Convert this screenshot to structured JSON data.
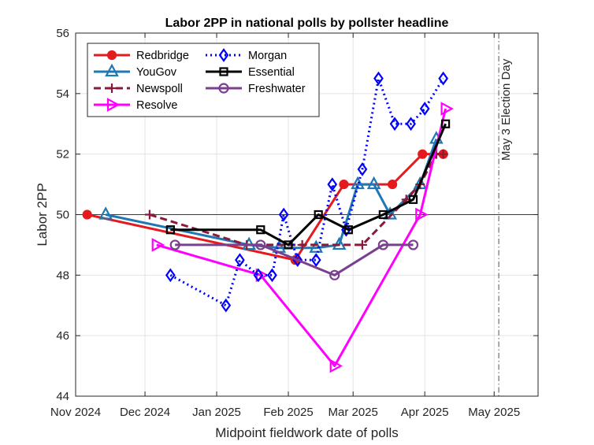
{
  "chart_data": {
    "type": "line",
    "title": "Labor 2PP in national polls by pollster headline",
    "xlabel": "Midpoint fieldwork date of polls",
    "ylabel": "Labor 2PP",
    "xlim": [
      "2024-11-01",
      "2025-05-20"
    ],
    "ylim": [
      44,
      56
    ],
    "yticks": [
      44,
      46,
      48,
      50,
      52,
      54,
      56
    ],
    "xticks": [
      {
        "date": "2024-11-01",
        "label": "Nov 2024"
      },
      {
        "date": "2024-12-01",
        "label": "Dec 2024"
      },
      {
        "date": "2025-01-01",
        "label": "Jan 2025"
      },
      {
        "date": "2025-02-01",
        "label": "Feb 2025"
      },
      {
        "date": "2025-03-01",
        "label": "Mar 2025"
      },
      {
        "date": "2025-04-01",
        "label": "Apr 2025"
      },
      {
        "date": "2025-05-01",
        "label": "May 2025"
      }
    ],
    "grid": true,
    "legend_position": "top-left",
    "reference_line_y": 50,
    "annotation": {
      "date": "2025-05-03",
      "text": "May 3 Election Day"
    },
    "series": [
      {
        "name": "Redbridge",
        "color": "#e41a1c",
        "dash": "solid",
        "marker": "circle",
        "points": [
          [
            "2024-11-06",
            50.0
          ],
          [
            "2025-02-04",
            48.5
          ],
          [
            "2025-02-25",
            51.0
          ],
          [
            "2025-03-18",
            51.0
          ],
          [
            "2025-03-31",
            52.0
          ],
          [
            "2025-04-09",
            52.0
          ]
        ]
      },
      {
        "name": "YouGov",
        "color": "#1f77b4",
        "dash": "solid",
        "marker": "triangle",
        "points": [
          [
            "2024-11-14",
            50.0
          ],
          [
            "2025-01-15",
            49.0
          ],
          [
            "2025-01-28",
            48.9
          ],
          [
            "2025-02-13",
            48.9
          ],
          [
            "2025-02-23",
            49.0
          ],
          [
            "2025-03-03",
            51.0
          ],
          [
            "2025-03-10",
            51.0
          ],
          [
            "2025-03-17",
            50.0
          ],
          [
            "2025-03-30",
            51.0
          ],
          [
            "2025-04-06",
            52.5
          ]
        ]
      },
      {
        "name": "Newspoll",
        "color": "#8b1a3a",
        "dash": "dashed",
        "marker": "plus",
        "points": [
          [
            "2024-12-03",
            50.0
          ],
          [
            "2025-01-14",
            49.0
          ],
          [
            "2025-02-07",
            49.0
          ],
          [
            "2025-03-05",
            49.0
          ],
          [
            "2025-03-24",
            50.5
          ],
          [
            "2025-03-30",
            51.0
          ],
          [
            "2025-04-06",
            52.0
          ],
          [
            "2025-04-09",
            52.0
          ]
        ]
      },
      {
        "name": "Resolve",
        "color": "#ff00ff",
        "dash": "solid",
        "marker": "triangle-right",
        "points": [
          [
            "2024-12-06",
            49.0
          ],
          [
            "2025-01-20",
            48.0
          ],
          [
            "2025-02-21",
            45.0
          ],
          [
            "2025-03-30",
            50.0
          ],
          [
            "2025-04-10",
            53.5
          ]
        ]
      },
      {
        "name": "Morgan",
        "color": "#0000ff",
        "dash": "dotted",
        "marker": "diamond",
        "points": [
          [
            "2024-12-12",
            48.0
          ],
          [
            "2025-01-05",
            47.0
          ],
          [
            "2025-01-11",
            48.5
          ],
          [
            "2025-01-19",
            48.0
          ],
          [
            "2025-01-25",
            48.0
          ],
          [
            "2025-01-30",
            50.0
          ],
          [
            "2025-02-05",
            48.5
          ],
          [
            "2025-02-13",
            48.5
          ],
          [
            "2025-02-20",
            51.0
          ],
          [
            "2025-02-26",
            49.5
          ],
          [
            "2025-03-05",
            51.5
          ],
          [
            "2025-03-12",
            54.5
          ],
          [
            "2025-03-19",
            53.0
          ],
          [
            "2025-03-26",
            53.0
          ],
          [
            "2025-04-01",
            53.5
          ],
          [
            "2025-04-09",
            54.5
          ]
        ]
      },
      {
        "name": "Essential",
        "color": "#000000",
        "dash": "solid",
        "marker": "square",
        "points": [
          [
            "2024-12-12",
            49.5
          ],
          [
            "2025-01-20",
            49.5
          ],
          [
            "2025-02-01",
            49.0
          ],
          [
            "2025-02-14",
            50.0
          ],
          [
            "2025-02-27",
            49.5
          ],
          [
            "2025-03-14",
            50.0
          ],
          [
            "2025-03-27",
            50.5
          ],
          [
            "2025-04-10",
            53.0
          ]
        ]
      },
      {
        "name": "Freshwater",
        "color": "#7b3f8f",
        "dash": "solid",
        "marker": "circle-open",
        "points": [
          [
            "2024-12-14",
            49.0
          ],
          [
            "2025-01-20",
            49.0
          ],
          [
            "2025-02-21",
            48.0
          ],
          [
            "2025-03-14",
            49.0
          ],
          [
            "2025-03-27",
            49.0
          ]
        ]
      }
    ]
  }
}
